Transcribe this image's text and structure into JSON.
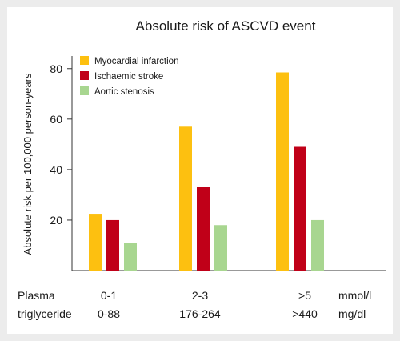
{
  "chart_data": {
    "type": "bar",
    "title": "Absolute risk of ASCVD event",
    "ylabel": "Absolute risk per 100,000 person-years",
    "ylim": [
      0,
      85
    ],
    "yticks": [
      20,
      40,
      60,
      80
    ],
    "row_label_line1": "Plasma",
    "row_label_line2": "triglyceride",
    "categories_mmol": [
      "0-1",
      "2-3",
      ">5"
    ],
    "categories_mgdl": [
      "0-88",
      "176-264",
      ">440"
    ],
    "unit_mmol": "mmol/l",
    "unit_mgdl": "mg/dl",
    "legend_position": "top-left",
    "series": [
      {
        "name": "Myocardial infarction",
        "color": "#fdc010",
        "values": [
          22.5,
          57,
          78.5
        ]
      },
      {
        "name": "Ischaemic stroke",
        "color": "#c00018",
        "values": [
          20,
          33,
          49
        ]
      },
      {
        "name": "Aortic stenosis",
        "color": "#a8d690",
        "values": [
          11,
          18,
          20
        ]
      }
    ]
  }
}
